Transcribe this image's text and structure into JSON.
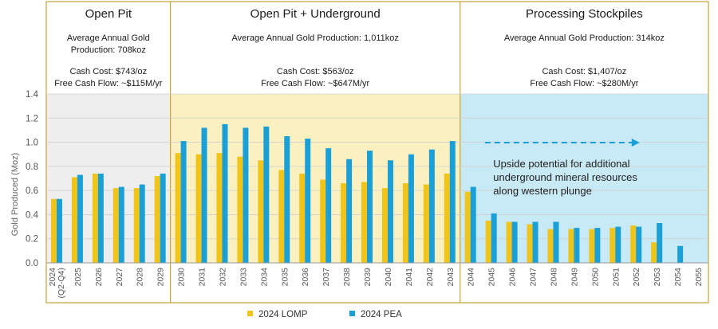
{
  "chart_data": {
    "type": "bar",
    "ylabel": "Gold Produced (Moz)",
    "ylim": [
      0,
      1.4
    ],
    "yticks": [
      "0.0",
      "0.2",
      "0.4",
      "0.6",
      "0.8",
      "1.0",
      "1.2",
      "1.4"
    ],
    "categories": [
      "2024\n(Q2-Q4)",
      "2025",
      "2026",
      "2027",
      "2028",
      "2029",
      "2030",
      "2031",
      "2032",
      "2033",
      "2034",
      "2035",
      "2036",
      "2037",
      "2038",
      "2039",
      "2040",
      "2041",
      "2042",
      "2043",
      "2044",
      "2045",
      "2046",
      "2047",
      "2048",
      "2049",
      "2050",
      "2051",
      "2052",
      "2053",
      "2054",
      "2055"
    ],
    "series": [
      {
        "name": "2024 LOMP",
        "color": "#f0c419",
        "values": [
          0.53,
          0.71,
          0.74,
          0.62,
          0.62,
          0.72,
          0.91,
          0.9,
          0.91,
          0.88,
          0.85,
          0.77,
          0.74,
          0.69,
          0.66,
          0.67,
          0.62,
          0.66,
          0.65,
          0.74,
          0.59,
          0.35,
          0.34,
          0.32,
          0.28,
          0.28,
          0.28,
          0.29,
          0.31,
          0.17,
          0,
          0
        ]
      },
      {
        "name": "2024 PEA",
        "color": "#1a9fd6",
        "values": [
          0.53,
          0.73,
          0.74,
          0.63,
          0.65,
          0.74,
          1.01,
          1.12,
          1.15,
          1.12,
          1.13,
          1.05,
          1.03,
          0.95,
          0.86,
          0.93,
          0.85,
          0.9,
          0.94,
          1.01,
          0.63,
          0.41,
          0.34,
          0.34,
          0.34,
          0.29,
          0.29,
          0.3,
          0.3,
          0.33,
          0.14,
          0
        ]
      }
    ],
    "phases": [
      {
        "title": "Open Pit",
        "production": "Average Annual Gold Production: 708koz",
        "cash_cost": "Cash Cost: $743/oz",
        "fcf": "Free Cash Flow: ~$115M/yr",
        "bg": "#eeeeee",
        "start": 0,
        "count": 6
      },
      {
        "title": "Open Pit + Underground",
        "production": "Average Annual Gold Production: 1,011koz",
        "cash_cost": "Cash Cost: $563/oz",
        "fcf": "Free Cash Flow: ~$647M/yr",
        "bg": "#fbf0c0",
        "start": 6,
        "count": 14
      },
      {
        "title": "Processing Stockpiles",
        "production": "Average Annual Gold Production: 314koz",
        "cash_cost": "Cash Cost: $1,407/oz",
        "fcf": "Free Cash Flow: ~$280M/yr",
        "bg": "#c8e9f6",
        "start": 20,
        "count": 12
      }
    ],
    "annotation": "Upside potential for additional underground mineral resources along western plunge",
    "legend_position": "bottom-center"
  }
}
